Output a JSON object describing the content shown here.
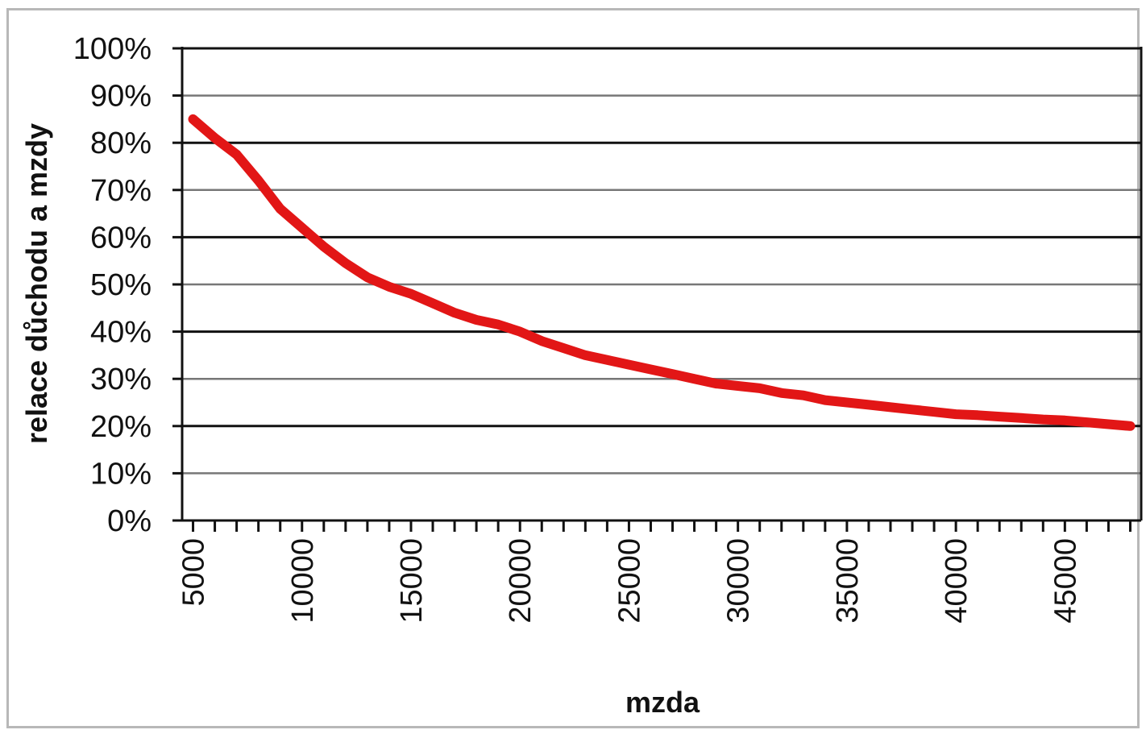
{
  "chart_data": {
    "type": "line",
    "title": "",
    "xlabel": "mzda",
    "ylabel": "relace důchodu a mzdy",
    "xlim": [
      4500,
      48500
    ],
    "ylim": [
      0,
      100
    ],
    "x_ticks": [
      5000,
      10000,
      15000,
      20000,
      25000,
      30000,
      35000,
      40000,
      45000
    ],
    "x_tick_labels": [
      "5000",
      "10000",
      "15000",
      "20000",
      "25000",
      "30000",
      "35000",
      "40000",
      "45000"
    ],
    "y_ticks": [
      0,
      10,
      20,
      30,
      40,
      50,
      60,
      70,
      80,
      90,
      100
    ],
    "y_tick_labels": [
      "0%",
      "10%",
      "20%",
      "30%",
      "40%",
      "50%",
      "60%",
      "70%",
      "80%",
      "90%",
      "100%"
    ],
    "grid": true,
    "legend": "none",
    "line_color": "#e21616",
    "series": [
      {
        "x": [
          5000,
          6000,
          7000,
          8000,
          9000,
          10000,
          11000,
          12000,
          13000,
          14000,
          15000,
          16000,
          17000,
          18000,
          19000,
          20000,
          21000,
          22000,
          23000,
          24000,
          25000,
          26000,
          27000,
          28000,
          29000,
          30000,
          31000,
          32000,
          33000,
          34000,
          35000,
          36000,
          37000,
          38000,
          39000,
          40000,
          41000,
          42000,
          43000,
          44000,
          45000,
          46000,
          47000,
          48000
        ],
        "y": [
          85,
          81,
          77.5,
          72,
          66,
          62,
          58,
          54.5,
          51.5,
          49.5,
          48,
          46,
          44,
          42.5,
          41.5,
          40,
          38,
          36.5,
          35,
          34,
          33,
          32,
          31,
          30,
          29,
          28.5,
          28,
          27,
          26.5,
          25.5,
          25,
          24.5,
          24,
          23.5,
          23,
          22.5,
          22.3,
          22,
          21.7,
          21.4,
          21.2,
          20.8,
          20.4,
          20
        ]
      }
    ]
  }
}
